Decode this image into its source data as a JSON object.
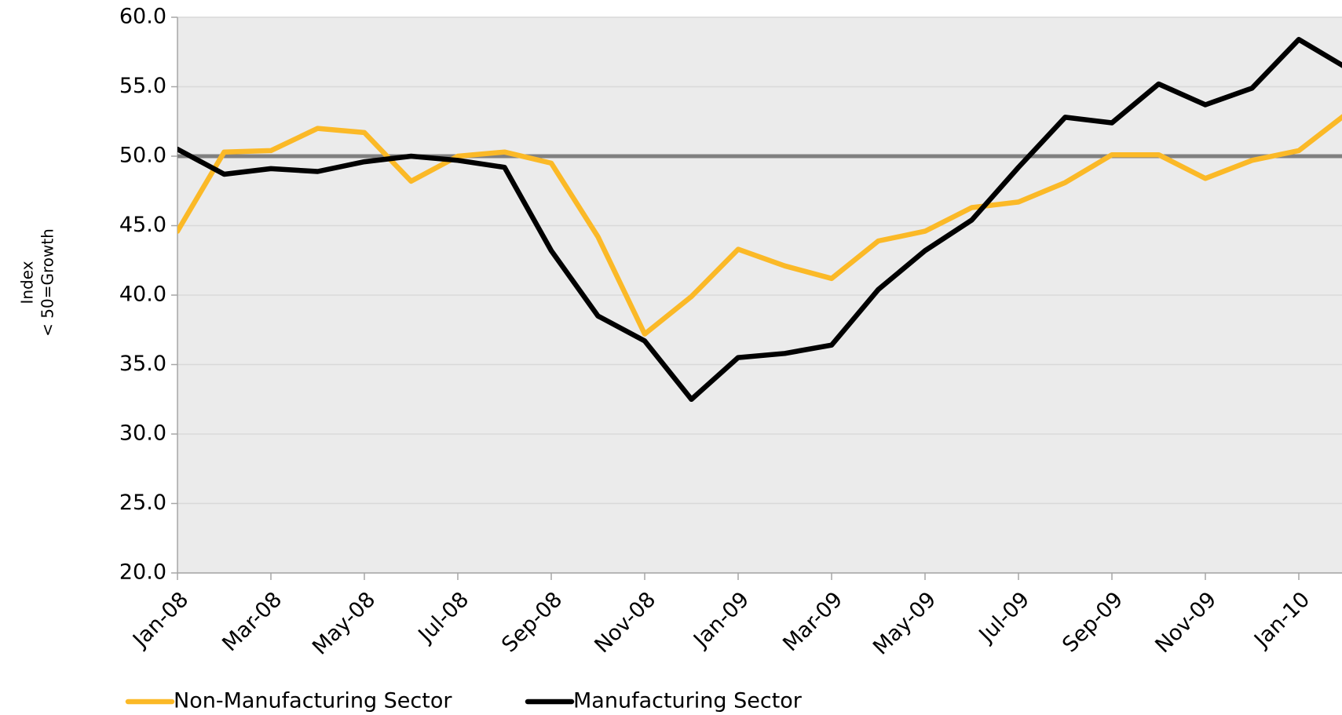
{
  "chart_data": {
    "type": "line",
    "ylabel": [
      "Index",
      "< 50=Growth"
    ],
    "categories": [
      "Jan-08",
      null,
      "Mar-08",
      null,
      "May-08",
      null,
      "Jul-08",
      null,
      "Sep-08",
      null,
      "Nov-08",
      null,
      "Jan-09",
      null,
      "Mar-09",
      null,
      "May-09",
      null,
      "Jul-09",
      null,
      "Sep-09",
      null,
      "Nov-09",
      null,
      "Jan-10",
      null
    ],
    "series": [
      {
        "name": "Non-Manufacturing Sector",
        "color": "#fbb927",
        "values": [
          44.6,
          50.3,
          50.4,
          52.0,
          51.7,
          48.2,
          50.0,
          50.3,
          49.5,
          44.2,
          37.2,
          39.9,
          43.3,
          42.1,
          41.2,
          43.9,
          44.6,
          46.3,
          46.7,
          48.1,
          50.1,
          50.1,
          48.4,
          49.7,
          50.4,
          53.0
        ]
      },
      {
        "name": "Manufacturing Sector",
        "color": "#000000",
        "values": [
          50.5,
          48.7,
          49.1,
          48.9,
          49.6,
          50.0,
          49.7,
          49.2,
          43.2,
          38.5,
          36.7,
          32.5,
          35.5,
          35.8,
          36.4,
          40.4,
          43.2,
          45.4,
          49.2,
          52.8,
          52.4,
          55.2,
          53.7,
          54.9,
          58.4,
          56.4
        ]
      }
    ],
    "ylim": [
      20,
      60
    ],
    "yticks": [
      {
        "value": 20,
        "label": "20.0"
      },
      {
        "value": 25,
        "label": "25.0"
      },
      {
        "value": 30,
        "label": "30.0"
      },
      {
        "value": 35,
        "label": "35.0"
      },
      {
        "value": 40,
        "label": "40.0"
      },
      {
        "value": 45,
        "label": "45.0"
      },
      {
        "value": 50,
        "label": "50.0"
      },
      {
        "value": 55,
        "label": "55.0"
      },
      {
        "value": 60,
        "label": "60.0"
      }
    ],
    "reference_line": 50,
    "grid": true,
    "legend": "bottom"
  }
}
